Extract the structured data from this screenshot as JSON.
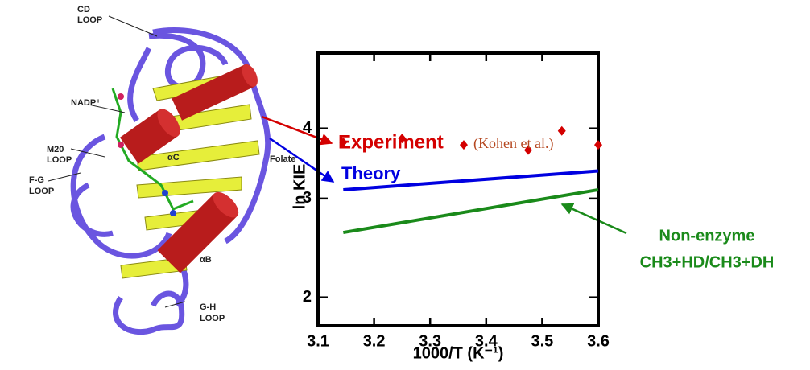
{
  "chart_data": {
    "type": "line",
    "x_label": "1000/T (K⁻¹)",
    "y_label": "ln KIE",
    "xlim": [
      3.1,
      3.6
    ],
    "xticks": [
      3.1,
      3.2,
      3.3,
      3.4,
      3.5,
      3.6
    ],
    "ylim": [
      1.78,
      5.45
    ],
    "yticks": [
      2,
      3,
      4
    ],
    "log_y": true,
    "series": [
      {
        "name": "Experiment",
        "note": "(Kohen et al.)",
        "color": "#d40000",
        "style": "markers",
        "x": [
          3.145,
          3.25,
          3.36,
          3.475,
          3.535,
          3.6
        ],
        "values": [
          3.78,
          3.84,
          3.74,
          3.66,
          3.96,
          3.74
        ]
      },
      {
        "name": "Theory",
        "color": "#0000e0",
        "style": "line",
        "x": [
          3.145,
          3.6
        ],
        "values": [
          3.11,
          3.36
        ]
      },
      {
        "name": "Non-enzyme",
        "subtitle": "CH3+HD/CH3+DH",
        "color": "#1a8a1a",
        "style": "line",
        "x": [
          3.145,
          3.6
        ],
        "values": [
          2.61,
          3.11
        ]
      }
    ]
  },
  "figure_labels": [
    "CD",
    "LOOP",
    "NADP⁺",
    "M20",
    "LOOP",
    "F-G",
    "LOOP",
    "αC",
    "Folate",
    "αB",
    "G-H",
    "LOOP"
  ]
}
